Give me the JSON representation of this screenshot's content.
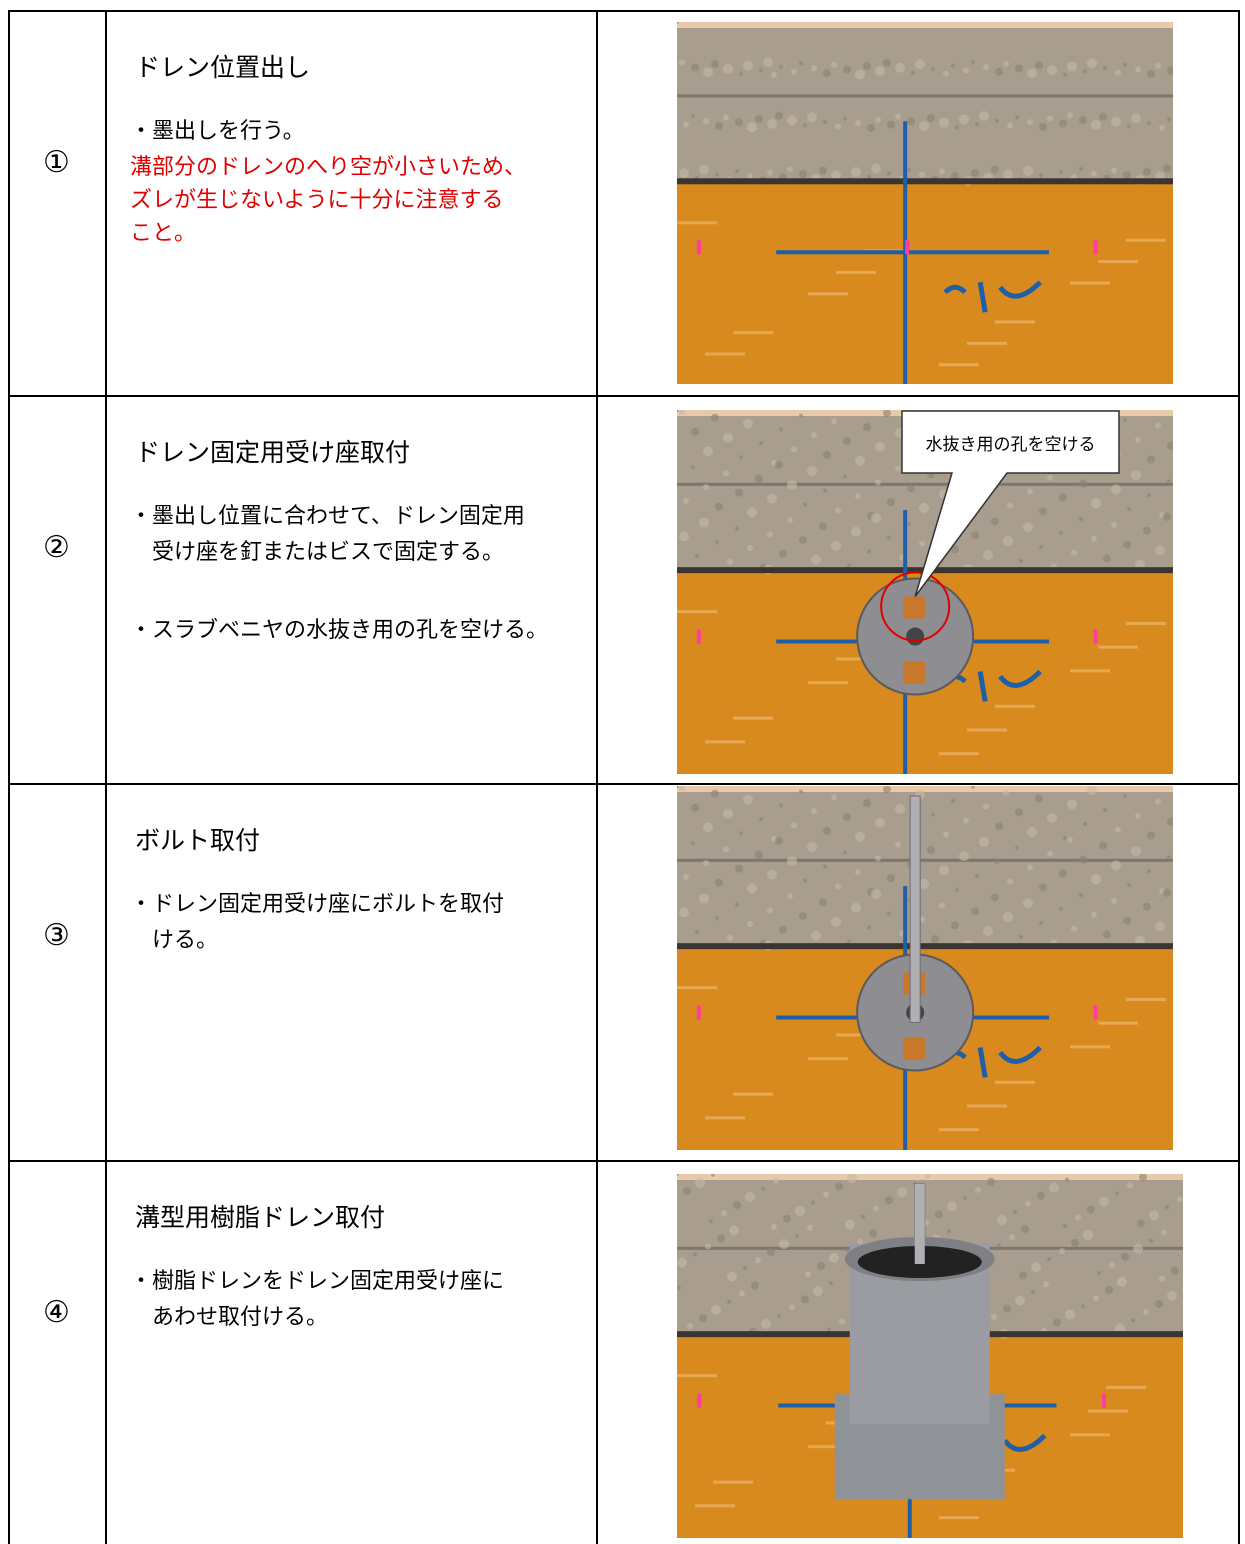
{
  "steps": [
    {
      "number": "①",
      "title": "ドレン位置出し",
      "paragraphs": [
        [
          "・墨出しを行う。"
        ]
      ],
      "note_lines": [
        "溝部分のドレンのへり空が小さいため、",
        "ズレが生じないように十分に注意する",
        "こと。"
      ]
    },
    {
      "number": "②",
      "title": "ドレン固定用受け座取付",
      "paragraphs": [
        [
          "・墨出し位置に合わせて、ドレン固定用",
          "　受け座を釘またはビスで固定する。"
        ],
        [
          "・スラブベニヤの水抜き用の孔を空ける。"
        ]
      ],
      "callout": "水抜き用の孔を空ける"
    },
    {
      "number": "③",
      "title": "ボルト取付",
      "paragraphs": [
        [
          "・ドレン固定用受け座にボルトを取付",
          "　ける。"
        ]
      ]
    },
    {
      "number": "④",
      "title": "溝型用樹脂ドレン取付",
      "paragraphs": [
        [
          "・樹脂ドレンをドレン固定用受け座に",
          "　あわせ取付ける。"
        ]
      ]
    }
  ]
}
